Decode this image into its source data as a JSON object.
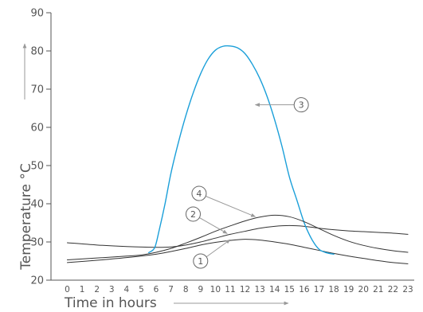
{
  "chart_data": {
    "type": "line",
    "title": "",
    "xlabel": "Time in hours",
    "ylabel": "Temperature °C",
    "xlim": [
      0,
      23
    ],
    "ylim": [
      20,
      90
    ],
    "y_ticks": [
      20,
      30,
      40,
      50,
      60,
      70,
      80,
      90
    ],
    "x_ticks": [
      0,
      1,
      2,
      3,
      4,
      5,
      6,
      7,
      8,
      9,
      10,
      11,
      12,
      13,
      14,
      15,
      16,
      17,
      18,
      19,
      20,
      21,
      22,
      23
    ],
    "grid": false,
    "legend": "none",
    "series": [
      {
        "label": "1",
        "color": "#333333",
        "x": [
          0,
          2,
          4,
          6,
          7,
          8,
          9,
          10,
          11,
          12,
          13,
          14,
          15,
          16,
          17,
          18,
          19,
          20,
          21,
          22,
          23
        ],
        "y": [
          24.6,
          25.2,
          25.9,
          26.8,
          27.5,
          28.3,
          29.2,
          29.9,
          30.4,
          30.7,
          30.5,
          30.0,
          29.4,
          28.6,
          27.8,
          27.0,
          26.3,
          25.7,
          25.1,
          24.6,
          24.3
        ]
      },
      {
        "label": "2",
        "color": "#333333",
        "x": [
          0,
          2,
          4,
          6,
          7,
          8,
          9,
          10,
          11,
          12,
          13,
          14,
          15,
          16,
          17,
          18,
          19,
          20,
          21,
          22,
          23
        ],
        "y": [
          29.8,
          29.2,
          28.8,
          28.6,
          28.7,
          29.2,
          30.0,
          31.0,
          32.0,
          32.8,
          33.6,
          34.1,
          34.3,
          34.1,
          33.6,
          33.2,
          32.9,
          32.7,
          32.5,
          32.3,
          32.0
        ]
      },
      {
        "label": "3",
        "color": "#1a9fd9",
        "x": [
          5.5,
          5.9,
          6.2,
          6.6,
          7.0,
          7.5,
          8.0,
          8.5,
          9.0,
          9.5,
          10.0,
          10.5,
          11.0,
          11.5,
          12.0,
          12.5,
          13.0,
          13.5,
          14.0,
          14.5,
          15.0,
          15.5,
          16.0,
          16.4,
          16.7,
          16.9,
          17.1,
          17.4,
          17.7,
          18.0
        ],
        "y": [
          27.2,
          28.5,
          33.0,
          40.0,
          48.0,
          56.0,
          63.0,
          69.0,
          74.0,
          77.8,
          80.2,
          81.2,
          81.3,
          80.8,
          79.3,
          76.5,
          72.8,
          68.0,
          62.0,
          55.0,
          47.0,
          41.0,
          35.0,
          31.5,
          29.5,
          28.5,
          27.8,
          27.3,
          27.0,
          26.8
        ]
      },
      {
        "label": "4",
        "color": "#333333",
        "x": [
          0,
          2,
          4,
          5,
          6,
          7,
          8,
          9,
          10,
          11,
          12,
          13,
          14,
          15,
          16,
          17,
          18,
          19,
          20,
          21,
          22,
          23
        ],
        "y": [
          25.3,
          25.8,
          26.3,
          26.6,
          27.3,
          28.3,
          29.7,
          31.2,
          32.8,
          34.2,
          35.5,
          36.5,
          37.0,
          36.6,
          35.3,
          33.5,
          31.7,
          30.2,
          29.1,
          28.3,
          27.7,
          27.3
        ]
      }
    ],
    "callouts": [
      {
        "label": "1",
        "circle": [
          9.0,
          25.0
        ],
        "target": [
          11.0,
          30.6
        ]
      },
      {
        "label": "2",
        "circle": [
          8.5,
          37.3
        ],
        "target": [
          10.8,
          32.2
        ]
      },
      {
        "label": "4",
        "circle": [
          8.9,
          42.7
        ],
        "target": [
          12.7,
          36.6
        ]
      },
      {
        "label": "3",
        "circle": [
          15.8,
          65.9
        ],
        "target": [
          12.7,
          65.9
        ]
      }
    ]
  }
}
